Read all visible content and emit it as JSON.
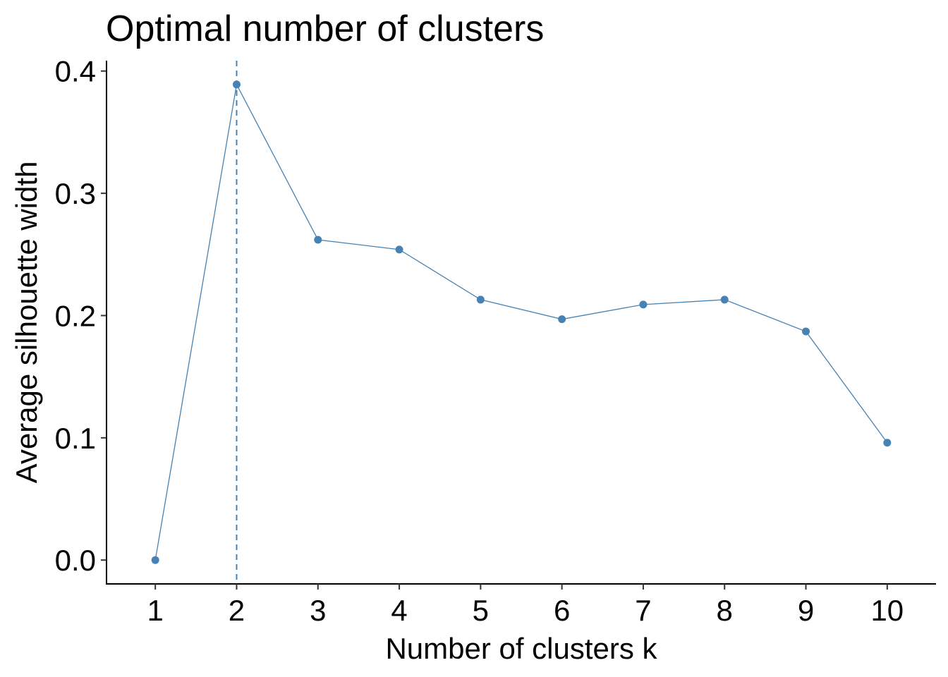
{
  "chart_data": {
    "type": "line",
    "title": "Optimal number of clusters",
    "xlabel": "Number of clusters k",
    "ylabel": "Average silhouette width",
    "x": [
      1,
      2,
      3,
      4,
      5,
      6,
      7,
      8,
      9,
      10
    ],
    "y": [
      0.0,
      0.389,
      0.262,
      0.254,
      0.213,
      0.197,
      0.209,
      0.213,
      0.187,
      0.096
    ],
    "x_ticks": [
      "1",
      "2",
      "3",
      "4",
      "5",
      "6",
      "7",
      "8",
      "9",
      "10"
    ],
    "y_ticks": [
      "0.0",
      "0.1",
      "0.2",
      "0.3",
      "0.4"
    ],
    "y_tick_values": [
      0.0,
      0.1,
      0.2,
      0.3,
      0.4
    ],
    "xlim": [
      0.4,
      10.6
    ],
    "ylim": [
      -0.0195,
      0.4085
    ],
    "optimal_k": 2,
    "series_color": "#4682B4",
    "grid": false,
    "legend": "none"
  }
}
